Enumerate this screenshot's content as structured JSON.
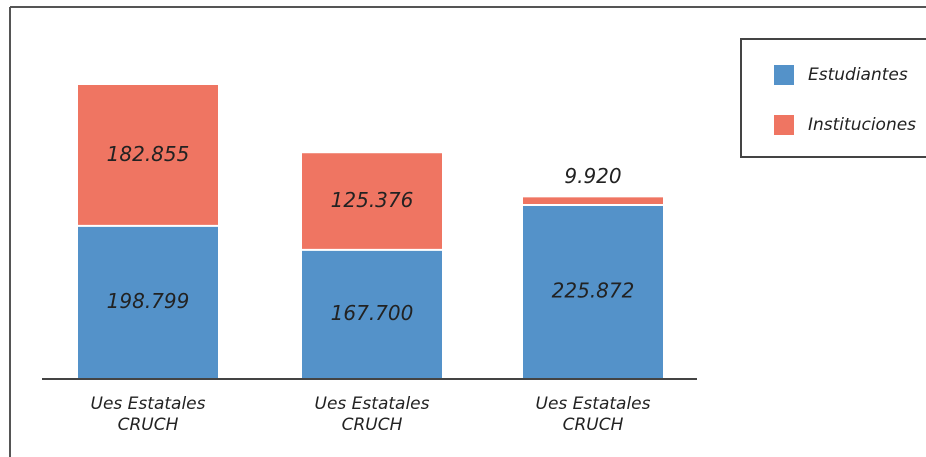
{
  "chart_data": {
    "type": "stacked_bar",
    "categories": [
      "Ues Estatales CRUCH",
      "Ues Estatales CRUCH",
      "Ues Estatales CRUCH"
    ],
    "series": [
      {
        "name": "Estudiantes",
        "color": "#5492c9",
        "values": [
          198799,
          167700,
          225872
        ],
        "value_labels": [
          "198.799",
          "167.700",
          "225.872"
        ]
      },
      {
        "name": "Instituciones",
        "color": "#ef7562",
        "values": [
          182855,
          125376,
          9920
        ],
        "value_labels": [
          "182.855",
          "125.376",
          "9.920"
        ]
      }
    ],
    "legend": "upper right"
  }
}
